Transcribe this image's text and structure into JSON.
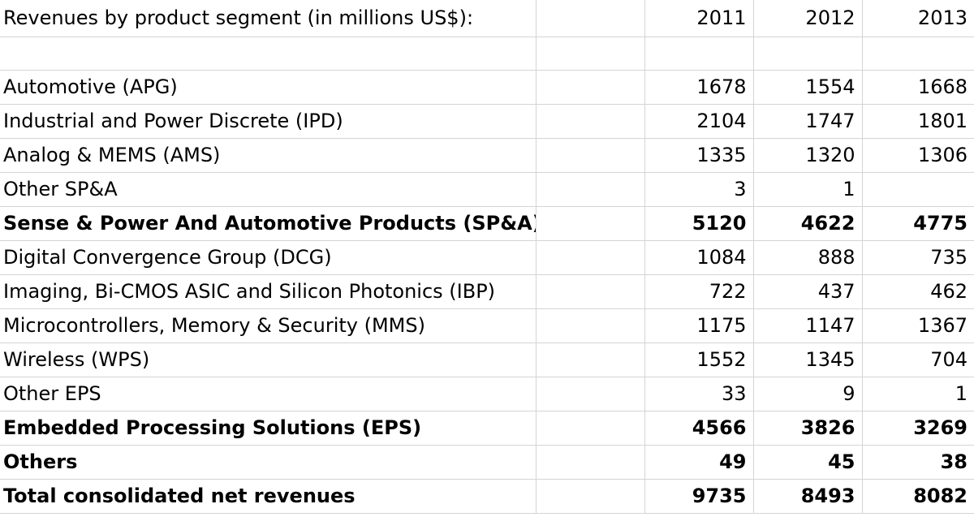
{
  "sheet": {
    "header": {
      "label": "Revenues by product segment (in millions US$):",
      "years": [
        "2011",
        "2012",
        "2013"
      ]
    },
    "rows": [
      {
        "label": "",
        "values": [
          "",
          "",
          ""
        ],
        "bold": false
      },
      {
        "label": "Automotive (APG)",
        "values": [
          "1678",
          "1554",
          "1668"
        ],
        "bold": false
      },
      {
        "label": "Industrial and Power Discrete (IPD)",
        "values": [
          "2104",
          "1747",
          "1801"
        ],
        "bold": false
      },
      {
        "label": "Analog & MEMS (AMS)",
        "values": [
          "1335",
          "1320",
          "1306"
        ],
        "bold": false
      },
      {
        "label": "Other SP&A",
        "values": [
          "3",
          "1",
          ""
        ],
        "bold": false
      },
      {
        "label": "Sense & Power And Automotive Products (SP&A)",
        "values": [
          "5120",
          "4622",
          "4775"
        ],
        "bold": true
      },
      {
        "label": "Digital Convergence Group (DCG)",
        "values": [
          "1084",
          "888",
          "735"
        ],
        "bold": false
      },
      {
        "label": "Imaging, Bi-CMOS ASIC and Silicon Photonics (IBP)",
        "values": [
          "722",
          "437",
          "462"
        ],
        "bold": false
      },
      {
        "label": "Microcontrollers, Memory & Security (MMS)",
        "values": [
          "1175",
          "1147",
          "1367"
        ],
        "bold": false
      },
      {
        "label": "Wireless (WPS)",
        "values": [
          "1552",
          "1345",
          "704"
        ],
        "bold": false
      },
      {
        "label": "Other EPS",
        "values": [
          "33",
          "9",
          "1"
        ],
        "bold": false
      },
      {
        "label": "Embedded Processing Solutions (EPS)",
        "values": [
          "4566",
          "3826",
          "3269"
        ],
        "bold": true
      },
      {
        "label": "Others",
        "values": [
          "49",
          "45",
          "38"
        ],
        "bold": true
      },
      {
        "label": "Total consolidated net revenues",
        "values": [
          "9735",
          "8493",
          "8082"
        ],
        "bold": true
      }
    ]
  }
}
